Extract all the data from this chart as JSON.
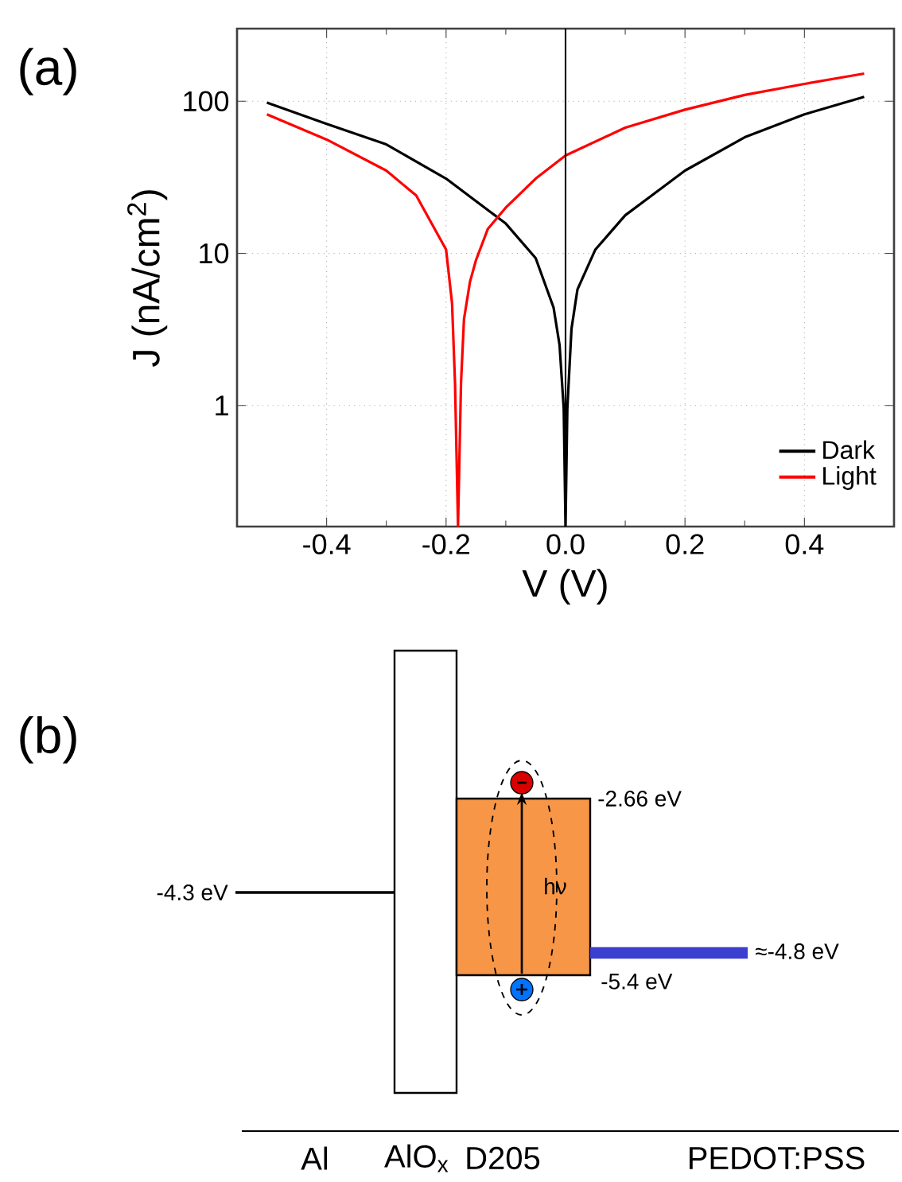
{
  "chart_data": [
    {
      "type": "line",
      "title": "(a)",
      "xlabel": "V (V)",
      "ylabel": "J (nA/cm$^{2}$)",
      "log": "y",
      "grid": true,
      "legend": "bottom right",
      "xlim": [
        -0.55,
        0.55
      ],
      "ylim": [
        0.16,
        300
      ],
      "xticks": [
        -0.4,
        -0.2,
        {
          "value": 0,
          "label": "0.0"
        },
        0.2,
        0.4
      ],
      "yticks": [
        1,
        10,
        100
      ],
      "ref_lines": [
        {
          "axis": "x",
          "value": 0,
          "color": "#000000"
        }
      ],
      "series": [
        {
          "name": "Dark",
          "color": "#000000",
          "x": [
            -0.5,
            -0.4,
            -0.3,
            -0.2,
            -0.1,
            -0.05,
            -0.02,
            -0.01,
            -0.003,
            0,
            0.003,
            0.01,
            0.02,
            0.05,
            0.1,
            0.2,
            0.3,
            0.4,
            0.5
          ],
          "values": [
            98,
            71,
            52,
            31,
            15.7,
            9.3,
            4.4,
            2.5,
            0.95,
            0.16,
            0.95,
            3.2,
            5.8,
            10.6,
            17.8,
            35,
            58,
            82,
            107
          ]
        },
        {
          "name": "Light",
          "color": "#ff0000",
          "x": [
            -0.5,
            -0.4,
            -0.3,
            -0.25,
            -0.2,
            -0.19,
            -0.185,
            -0.18,
            -0.175,
            -0.17,
            -0.16,
            -0.15,
            -0.13,
            -0.1,
            -0.05,
            0,
            0.1,
            0.2,
            0.3,
            0.4,
            0.5
          ],
          "values": [
            82,
            56,
            35,
            24,
            10.6,
            4.7,
            1.4,
            0.16,
            1.4,
            3.7,
            6.5,
            9,
            14.5,
            20,
            31,
            44,
            67,
            88,
            110,
            130,
            152
          ]
        }
      ]
    },
    {
      "type": "other",
      "title": "(b)",
      "categories": [
        "Al",
        "AlO$_{x}$",
        "D205",
        "PEDOT:PSS"
      ],
      "annotations": [
        "-4.3 eV",
        "-2.66 eV",
        "-5.4 eV",
        "≈-4.8 eV",
        "hν"
      ]
    }
  ]
}
